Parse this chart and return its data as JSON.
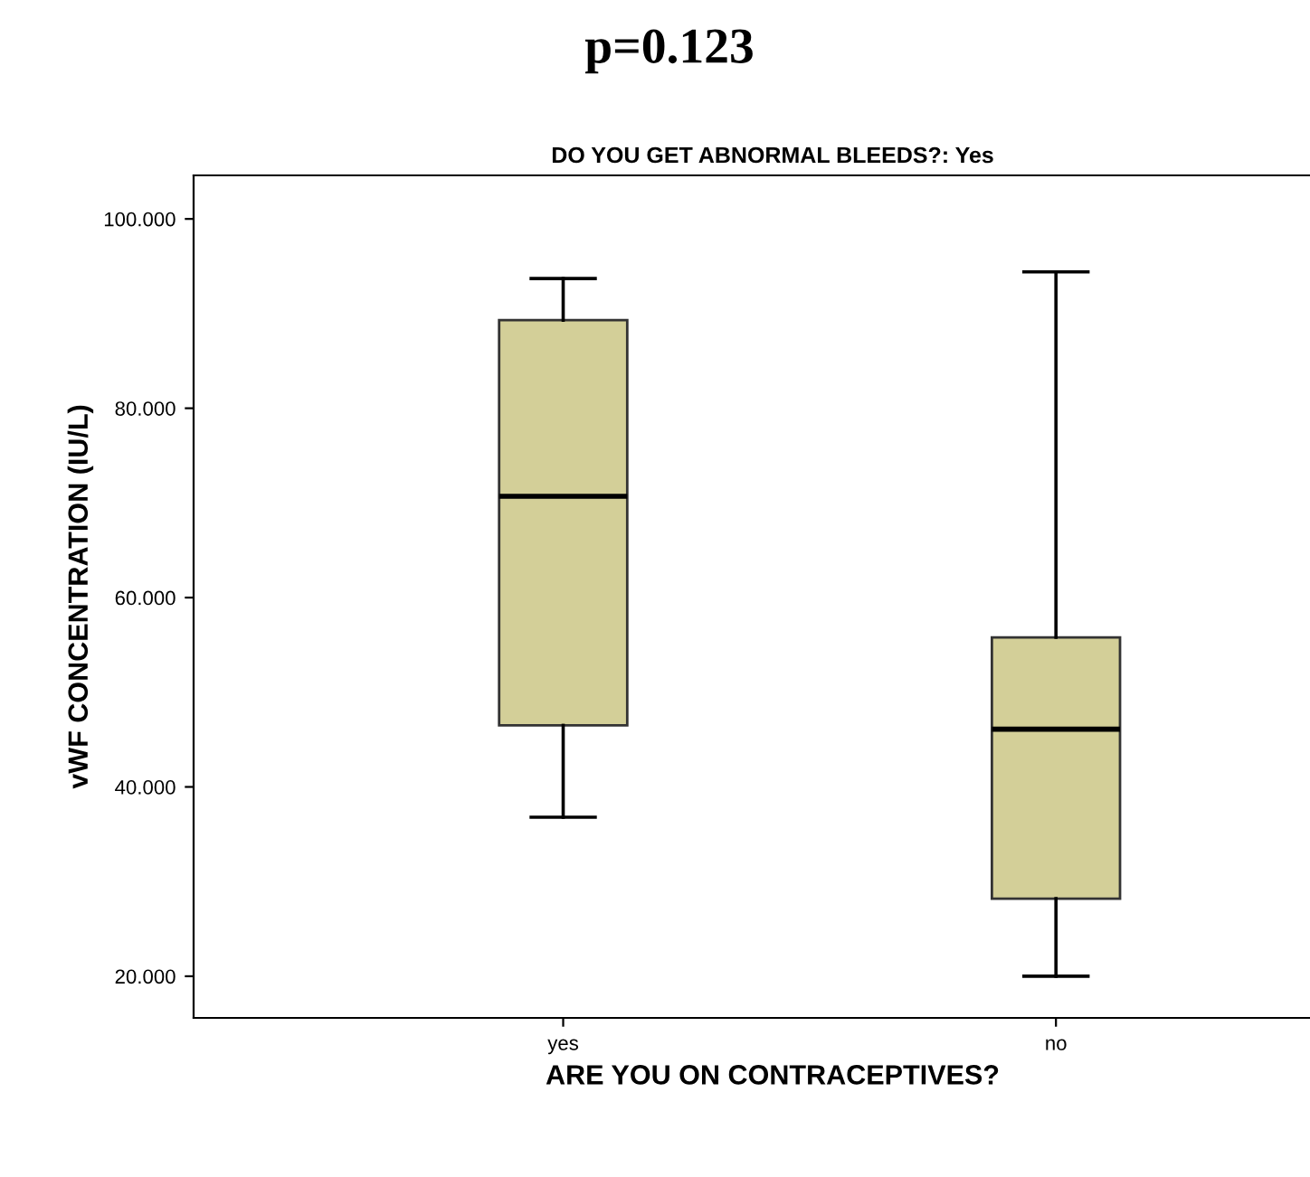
{
  "chart_data": {
    "type": "box",
    "title": "p=0.123",
    "subtitle": "DO YOU GET ABNORMAL BLEEDS?: Yes",
    "xlabel": "ARE YOU ON CONTRACEPTIVES?",
    "ylabel": "vWF CONCENTRATION (IU/L)",
    "categories": [
      "yes",
      "no"
    ],
    "series": [
      {
        "color": "#d3cf98",
        "boxes": [
          {
            "low": 36.8,
            "q1": 46.5,
            "median": 70.7,
            "q3": 89.3,
            "high": 93.7
          },
          {
            "low": 20.0,
            "q1": 28.2,
            "median": 46.1,
            "q3": 55.8,
            "high": 94.4
          }
        ]
      }
    ],
    "ylim": [
      15.6,
      104.6
    ],
    "yticks": [
      {
        "value": 20,
        "label": "20.000"
      },
      {
        "value": 40,
        "label": "40.000"
      },
      {
        "value": 60,
        "label": "60.000"
      },
      {
        "value": 80,
        "label": "80.000"
      },
      {
        "value": 100,
        "label": "100.000"
      }
    ],
    "grid": false
  }
}
